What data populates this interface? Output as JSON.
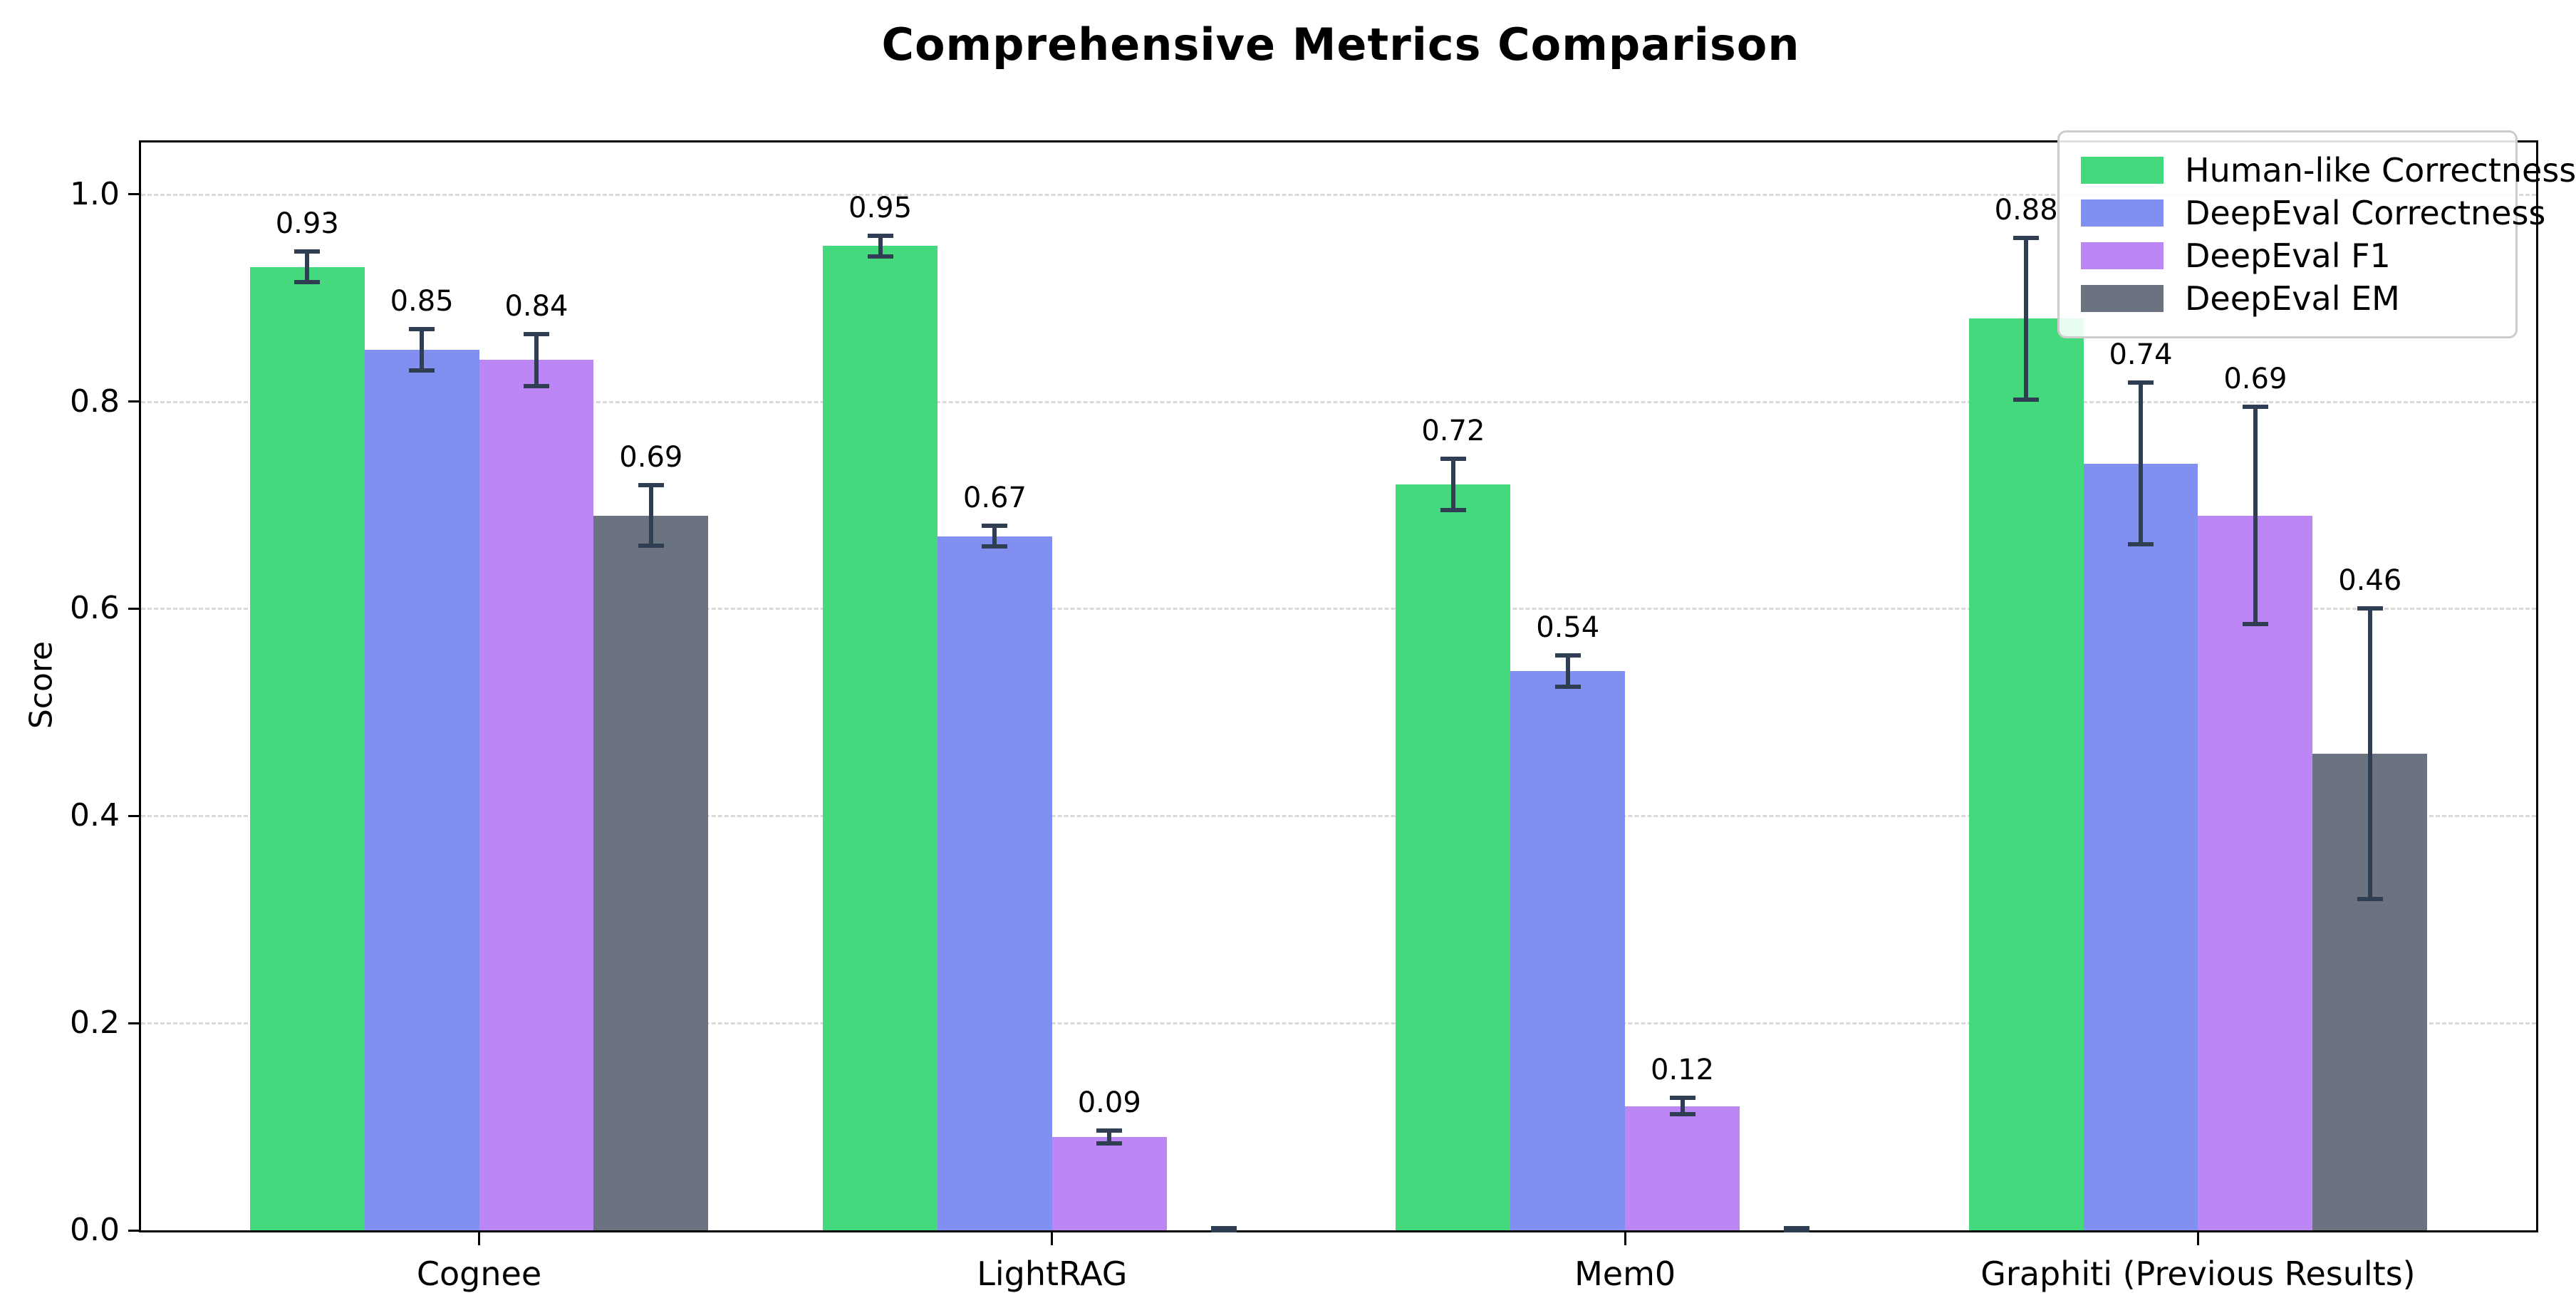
{
  "figure": {
    "title": "Comprehensive Metrics Comparison"
  },
  "chart_data": {
    "type": "bar",
    "title": "Comprehensive Metrics Comparison",
    "xlabel": "",
    "ylabel": "Score",
    "ylim": [
      0,
      1.05
    ],
    "yticks": [
      "0.0",
      "0.2",
      "0.4",
      "0.6",
      "0.8",
      "1.0"
    ],
    "grid": "horizontal dashed",
    "legend_position": "upper right",
    "categories": [
      "Cognee",
      "LightRAG",
      "Mem0",
      "Graphiti (Previous Results)"
    ],
    "series": [
      {
        "name": "Human-like Correctness",
        "color": "#45d97e",
        "values": [
          0.93,
          0.95,
          0.72,
          0.88
        ],
        "errors": [
          0.015,
          0.01,
          0.025,
          0.078
        ]
      },
      {
        "name": "DeepEval Correctness",
        "color": "#8190f0",
        "values": [
          0.85,
          0.67,
          0.54,
          0.74
        ],
        "errors": [
          0.02,
          0.01,
          0.015,
          0.078
        ]
      },
      {
        "name": "DeepEval F1",
        "color": "#bd86f7",
        "values": [
          0.84,
          0.09,
          0.12,
          0.69
        ],
        "errors": [
          0.025,
          0.006,
          0.008,
          0.105
        ]
      },
      {
        "name": "DeepEval EM",
        "color": "#6b7280",
        "values": [
          0.69,
          0.0,
          0.0,
          0.46
        ],
        "errors": [
          0.029,
          0.002,
          0.002,
          0.14
        ]
      }
    ],
    "bar_value_labels": [
      "0.93",
      "0.85",
      "0.84",
      "0.69",
      "0.95",
      "0.67",
      "0.09",
      "0.72",
      "0.54",
      "0.12",
      "0.88",
      "0.74",
      "0.69",
      "0.46"
    ],
    "error_color": "#2f3e53",
    "axis_color": "#000000",
    "grid_color": "#d9d9d9"
  }
}
